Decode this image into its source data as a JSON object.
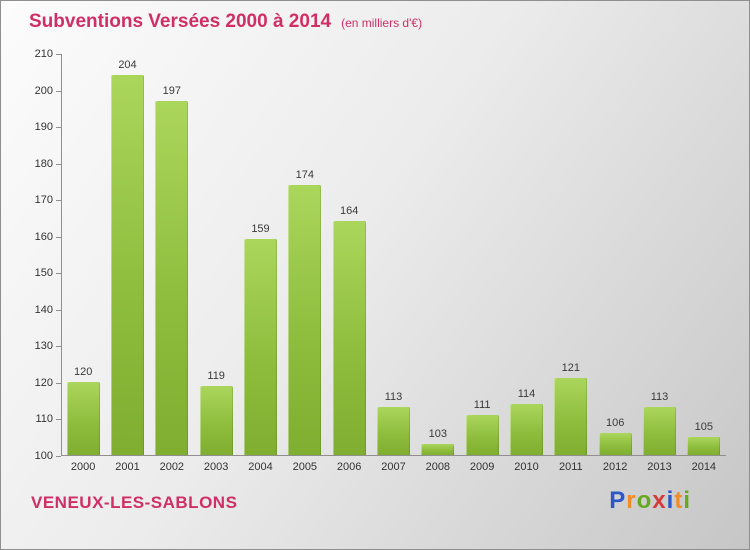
{
  "header": {
    "title": "Subventions Versées 2000 à 2014",
    "subtitle": "(en milliers d'€)"
  },
  "footer": {
    "location": "VENEUX-LES-SABLONS",
    "logo_letters": [
      {
        "ch": "P",
        "color": "#2b57c8"
      },
      {
        "ch": "r",
        "color": "#f28c28"
      },
      {
        "ch": "o",
        "color": "#66a81f"
      },
      {
        "ch": "x",
        "color": "#d43a3a"
      },
      {
        "ch": "i",
        "color": "#2b57c8"
      },
      {
        "ch": "t",
        "color": "#f28c28"
      },
      {
        "ch": "i",
        "color": "#66a81f"
      }
    ]
  },
  "colors": {
    "title": "#cf2f66",
    "bar_top": "#abd65c",
    "bar_bottom": "#7fae30",
    "axis": "#8f8f8f",
    "label": "#333333"
  },
  "chart_data": {
    "type": "bar",
    "title": "Subventions Versées 2000 à 2014",
    "subtitle": "(en milliers d'€)",
    "categories": [
      "2000",
      "2001",
      "2002",
      "2003",
      "2004",
      "2005",
      "2006",
      "2007",
      "2008",
      "2009",
      "2010",
      "2011",
      "2012",
      "2013",
      "2014"
    ],
    "values": [
      120,
      204,
      197,
      119,
      159,
      174,
      164,
      113,
      103,
      111,
      114,
      121,
      106,
      113,
      105
    ],
    "xlabel": "",
    "ylabel": "",
    "ylim": [
      100,
      210
    ],
    "ytick_step": 10,
    "grid": false,
    "legend": false
  }
}
